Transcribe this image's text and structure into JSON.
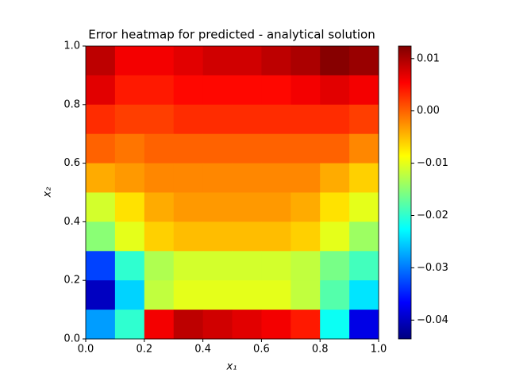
{
  "chart_data": {
    "type": "heatmap",
    "title": "Error heatmap for predicted - analytical solution",
    "xlabel": "x₁",
    "ylabel": "x₂",
    "x": [
      0.05,
      0.15,
      0.25,
      0.35,
      0.45,
      0.55,
      0.65,
      0.75,
      0.85,
      0.95
    ],
    "y": [
      0.95,
      0.85,
      0.75,
      0.65,
      0.55,
      0.45,
      0.35,
      0.25,
      0.15,
      0.05
    ],
    "z": [
      [
        0.009,
        0.006,
        0.006,
        0.007,
        0.008,
        0.008,
        0.009,
        0.01,
        0.012,
        0.011
      ],
      [
        0.007,
        0.004,
        0.004,
        0.005,
        0.005,
        0.005,
        0.005,
        0.006,
        0.007,
        0.006
      ],
      [
        0.003,
        0.002,
        0.002,
        0.003,
        0.003,
        0.003,
        0.003,
        0.003,
        0.003,
        0.002
      ],
      [
        0.0,
        -0.001,
        0.0,
        0.0,
        0.0,
        0.0,
        0.0,
        0.0,
        0.0,
        -0.002
      ],
      [
        -0.004,
        -0.003,
        -0.002,
        -0.002,
        -0.002,
        -0.002,
        -0.002,
        -0.002,
        -0.004,
        -0.006
      ],
      [
        -0.011,
        -0.007,
        -0.004,
        -0.003,
        -0.003,
        -0.003,
        -0.003,
        -0.004,
        -0.007,
        -0.01
      ],
      [
        -0.015,
        -0.01,
        -0.006,
        -0.005,
        -0.005,
        -0.005,
        -0.005,
        -0.006,
        -0.01,
        -0.014
      ],
      [
        -0.033,
        -0.02,
        -0.013,
        -0.011,
        -0.011,
        -0.011,
        -0.011,
        -0.012,
        -0.016,
        -0.019
      ],
      [
        -0.04,
        -0.025,
        -0.012,
        -0.01,
        -0.01,
        -0.01,
        -0.01,
        -0.012,
        -0.018,
        -0.024
      ],
      [
        -0.028,
        -0.02,
        0.006,
        0.009,
        0.008,
        0.007,
        0.006,
        0.004,
        -0.022,
        -0.038
      ]
    ],
    "colormap": "jet",
    "xlim": [
      0,
      1
    ],
    "ylim": [
      0,
      1
    ],
    "xticks": [
      {
        "value": 0,
        "label": "0.0"
      },
      0.2,
      0.4,
      0.6,
      0.8,
      {
        "value": 1,
        "label": "1.0"
      }
    ],
    "yticks": [
      {
        "value": 0,
        "label": "0.0"
      },
      0.2,
      0.4,
      0.6,
      0.8,
      {
        "value": 1,
        "label": "1.0"
      }
    ],
    "clim": [
      -0.0436,
      0.0124
    ],
    "cticks": [
      0.01,
      {
        "value": 0,
        "label": "0.00"
      },
      {
        "value": -0.01,
        "label": "−0.01"
      },
      {
        "value": -0.02,
        "label": "−0.02"
      },
      {
        "value": -0.03,
        "label": "−0.03"
      },
      {
        "value": -0.04,
        "label": "−0.04"
      }
    ]
  }
}
